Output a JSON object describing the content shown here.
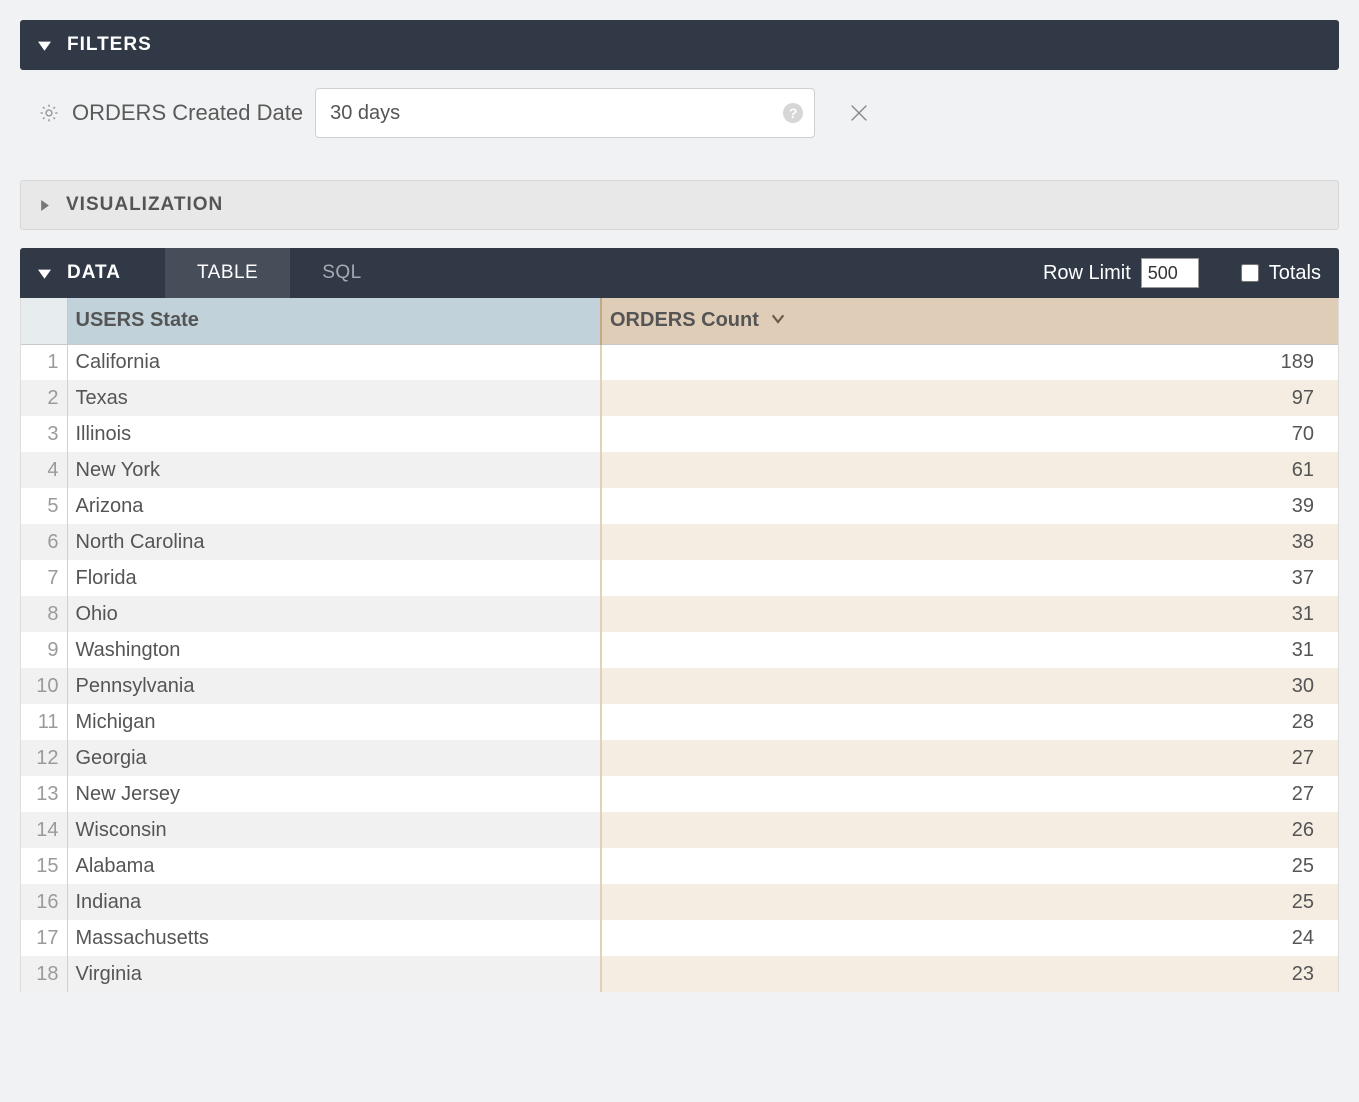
{
  "filters": {
    "header_label": "FILTERS",
    "field_label": "ORDERS Created Date",
    "input_value": "30 days"
  },
  "visualization": {
    "header_label": "VISUALIZATION"
  },
  "data": {
    "header_label": "DATA",
    "tabs": {
      "table": "TABLE",
      "sql": "SQL"
    },
    "row_limit_label": "Row Limit",
    "row_limit_value": "500",
    "totals_label": "Totals"
  },
  "table": {
    "columns": {
      "state_header": "USERS State",
      "count_header": "ORDERS Count"
    },
    "rows": [
      {
        "n": "1",
        "state": "California",
        "count": "189"
      },
      {
        "n": "2",
        "state": "Texas",
        "count": "97"
      },
      {
        "n": "3",
        "state": "Illinois",
        "count": "70"
      },
      {
        "n": "4",
        "state": "New York",
        "count": "61"
      },
      {
        "n": "5",
        "state": "Arizona",
        "count": "39"
      },
      {
        "n": "6",
        "state": "North Carolina",
        "count": "38"
      },
      {
        "n": "7",
        "state": "Florida",
        "count": "37"
      },
      {
        "n": "8",
        "state": "Ohio",
        "count": "31"
      },
      {
        "n": "9",
        "state": "Washington",
        "count": "31"
      },
      {
        "n": "10",
        "state": "Pennsylvania",
        "count": "30"
      },
      {
        "n": "11",
        "state": "Michigan",
        "count": "28"
      },
      {
        "n": "12",
        "state": "Georgia",
        "count": "27"
      },
      {
        "n": "13",
        "state": "New Jersey",
        "count": "27"
      },
      {
        "n": "14",
        "state": "Wisconsin",
        "count": "26"
      },
      {
        "n": "15",
        "state": "Alabama",
        "count": "25"
      },
      {
        "n": "16",
        "state": "Indiana",
        "count": "25"
      },
      {
        "n": "17",
        "state": "Massachusetts",
        "count": "24"
      },
      {
        "n": "18",
        "state": "Virginia",
        "count": "23"
      }
    ]
  },
  "colors": {
    "page_bg": "#f1f2f3",
    "dark_header_bg": "#303945",
    "light_header_bg": "#e8e8e8",
    "tab_active_bg": "#464e5a",
    "state_header_bg": "#c1d2da",
    "count_header_bg": "#dfcdb8",
    "count_even_bg": "#f5ede2",
    "row_even_bg": "#f1f1f1"
  }
}
